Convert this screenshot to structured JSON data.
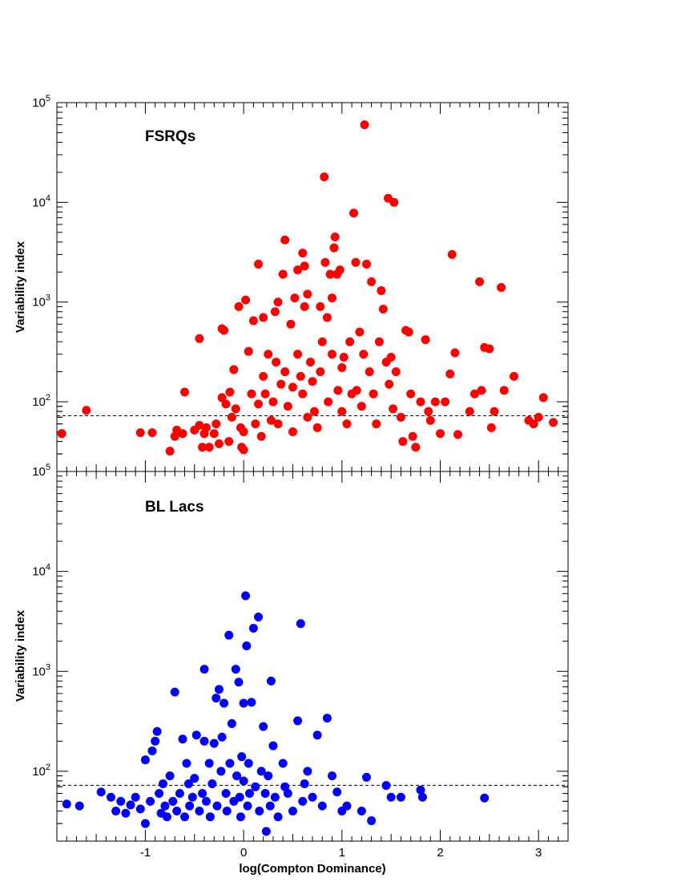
{
  "chart_data": [
    {
      "type": "scatter",
      "panel_label": "FSRQs",
      "xlabel": "",
      "ylabel": "Variability index",
      "xlim": [
        -1.9,
        3.3
      ],
      "ylim": [
        20,
        100000
      ],
      "y_scale": "log",
      "y_tick_labels": [
        {
          "base": "10",
          "exp": "2",
          "value": 100
        },
        {
          "base": "10",
          "exp": "3",
          "value": 1000
        },
        {
          "base": "10",
          "exp": "4",
          "value": 10000
        },
        {
          "base": "10",
          "exp": "5",
          "value": 100000
        }
      ],
      "threshold_line": 72.44,
      "marker_color": "#ff0000",
      "points": [
        [
          -1.85,
          48
        ],
        [
          -1.6,
          82
        ],
        [
          -1.05,
          49
        ],
        [
          -0.93,
          49
        ],
        [
          -0.75,
          32
        ],
        [
          -0.68,
          52
        ],
        [
          -0.7,
          45
        ],
        [
          -0.62,
          48
        ],
        [
          -0.6,
          125
        ],
        [
          -0.5,
          52
        ],
        [
          -0.45,
          430
        ],
        [
          -0.45,
          58
        ],
        [
          -0.42,
          35
        ],
        [
          -0.4,
          48
        ],
        [
          -0.38,
          55
        ],
        [
          -0.35,
          35
        ],
        [
          -0.3,
          48
        ],
        [
          -0.28,
          60
        ],
        [
          -0.25,
          38
        ],
        [
          -0.22,
          110
        ],
        [
          -0.2,
          520
        ],
        [
          -0.22,
          540
        ],
        [
          -0.18,
          95
        ],
        [
          -0.15,
          40
        ],
        [
          -0.14,
          125
        ],
        [
          -0.12,
          70
        ],
        [
          -0.1,
          210
        ],
        [
          -0.08,
          85
        ],
        [
          -0.05,
          900
        ],
        [
          -0.03,
          55
        ],
        [
          -0.02,
          35
        ],
        [
          0,
          50
        ],
        [
          0,
          33
        ],
        [
          0.02,
          1050
        ],
        [
          0.05,
          320
        ],
        [
          0.08,
          120
        ],
        [
          0.1,
          650
        ],
        [
          0.12,
          60
        ],
        [
          0.15,
          2400
        ],
        [
          0.15,
          95
        ],
        [
          0.18,
          45
        ],
        [
          0.2,
          180
        ],
        [
          0.2,
          700
        ],
        [
          0.22,
          120
        ],
        [
          0.25,
          300
        ],
        [
          0.28,
          65
        ],
        [
          0.3,
          100
        ],
        [
          0.32,
          800
        ],
        [
          0.33,
          250
        ],
        [
          0.35,
          1000
        ],
        [
          0.35,
          60
        ],
        [
          0.38,
          150
        ],
        [
          0.4,
          1900
        ],
        [
          0.42,
          4200
        ],
        [
          0.42,
          200
        ],
        [
          0.45,
          90
        ],
        [
          0.48,
          600
        ],
        [
          0.5,
          140
        ],
        [
          0.5,
          50
        ],
        [
          0.52,
          1100
        ],
        [
          0.55,
          2100
        ],
        [
          0.55,
          300
        ],
        [
          0.58,
          180
        ],
        [
          0.6,
          3100
        ],
        [
          0.6,
          120
        ],
        [
          0.62,
          900
        ],
        [
          0.62,
          2300
        ],
        [
          0.65,
          1200
        ],
        [
          0.65,
          70
        ],
        [
          0.68,
          250
        ],
        [
          0.7,
          160
        ],
        [
          0.72,
          80
        ],
        [
          0.75,
          55
        ],
        [
          0.78,
          900
        ],
        [
          0.78,
          200
        ],
        [
          0.8,
          400
        ],
        [
          0.82,
          18000
        ],
        [
          0.83,
          2500
        ],
        [
          0.85,
          700
        ],
        [
          0.86,
          100
        ],
        [
          0.88,
          1900
        ],
        [
          0.9,
          1100
        ],
        [
          0.9,
          300
        ],
        [
          0.92,
          3500
        ],
        [
          0.93,
          4500
        ],
        [
          0.95,
          1900
        ],
        [
          0.96,
          130
        ],
        [
          0.98,
          2100
        ],
        [
          1,
          80
        ],
        [
          1,
          220
        ],
        [
          1.02,
          280
        ],
        [
          1.05,
          60
        ],
        [
          1.08,
          400
        ],
        [
          1.1,
          120
        ],
        [
          1.12,
          7800
        ],
        [
          1.14,
          2500
        ],
        [
          1.15,
          130
        ],
        [
          1.18,
          500
        ],
        [
          1.2,
          90
        ],
        [
          1.22,
          300
        ],
        [
          1.23,
          60000
        ],
        [
          1.25,
          2400
        ],
        [
          1.28,
          200
        ],
        [
          1.3,
          1600
        ],
        [
          1.32,
          120
        ],
        [
          1.35,
          60
        ],
        [
          1.38,
          400
        ],
        [
          1.4,
          1300
        ],
        [
          1.42,
          850
        ],
        [
          1.45,
          250
        ],
        [
          1.47,
          11000
        ],
        [
          1.48,
          150
        ],
        [
          1.5,
          280
        ],
        [
          1.52,
          85
        ],
        [
          1.53,
          10000
        ],
        [
          1.55,
          200
        ],
        [
          1.6,
          70
        ],
        [
          1.62,
          40
        ],
        [
          1.65,
          520
        ],
        [
          1.68,
          500
        ],
        [
          1.7,
          120
        ],
        [
          1.72,
          45
        ],
        [
          1.75,
          35
        ],
        [
          1.8,
          100
        ],
        [
          1.85,
          420
        ],
        [
          1.88,
          80
        ],
        [
          1.9,
          65
        ],
        [
          1.95,
          100
        ],
        [
          2,
          48
        ],
        [
          2.05,
          100
        ],
        [
          2.1,
          190
        ],
        [
          2.12,
          3000
        ],
        [
          2.15,
          310
        ],
        [
          2.18,
          47
        ],
        [
          2.3,
          80
        ],
        [
          2.35,
          120
        ],
        [
          2.4,
          1600
        ],
        [
          2.42,
          130
        ],
        [
          2.45,
          350
        ],
        [
          2.5,
          340
        ],
        [
          2.52,
          55
        ],
        [
          2.55,
          80
        ],
        [
          2.62,
          1400
        ],
        [
          2.65,
          130
        ],
        [
          2.75,
          180
        ],
        [
          2.9,
          65
        ],
        [
          2.95,
          60
        ],
        [
          3,
          70
        ],
        [
          3.05,
          110
        ],
        [
          3.15,
          62
        ]
      ]
    },
    {
      "type": "scatter",
      "panel_label": "BL Lacs",
      "xlabel": "log(Compton Dominance)",
      "ylabel": "Variability index",
      "xlim": [
        -1.9,
        3.3
      ],
      "ylim": [
        20,
        100000
      ],
      "y_scale": "log",
      "x_tick_labels": [
        {
          "label": "-1",
          "value": -1
        },
        {
          "label": "0",
          "value": 0
        },
        {
          "label": "1",
          "value": 1
        },
        {
          "label": "2",
          "value": 2
        },
        {
          "label": "3",
          "value": 3
        }
      ],
      "y_tick_labels": [
        {
          "base": "10",
          "exp": "2",
          "value": 100
        },
        {
          "base": "10",
          "exp": "3",
          "value": 1000
        },
        {
          "base": "10",
          "exp": "4",
          "value": 10000
        },
        {
          "base": "10",
          "exp": "5",
          "value": 100000
        }
      ],
      "threshold_line": 72.44,
      "marker_color": "#0000ff",
      "points": [
        [
          -1.8,
          47
        ],
        [
          -1.67,
          45
        ],
        [
          -1.45,
          62
        ],
        [
          -1.35,
          55
        ],
        [
          -1.3,
          40
        ],
        [
          -1.25,
          50
        ],
        [
          -1.2,
          38
        ],
        [
          -1.15,
          46
        ],
        [
          -1.1,
          55
        ],
        [
          -1.05,
          42
        ],
        [
          -1,
          130
        ],
        [
          -1,
          30
        ],
        [
          -0.95,
          50
        ],
        [
          -0.93,
          160
        ],
        [
          -0.9,
          200
        ],
        [
          -0.88,
          250
        ],
        [
          -0.86,
          60
        ],
        [
          -0.84,
          38
        ],
        [
          -0.82,
          75
        ],
        [
          -0.8,
          45
        ],
        [
          -0.78,
          35
        ],
        [
          -0.75,
          90
        ],
        [
          -0.72,
          50
        ],
        [
          -0.7,
          620
        ],
        [
          -0.68,
          40
        ],
        [
          -0.65,
          60
        ],
        [
          -0.62,
          210
        ],
        [
          -0.6,
          35
        ],
        [
          -0.58,
          120
        ],
        [
          -0.56,
          75
        ],
        [
          -0.55,
          45
        ],
        [
          -0.52,
          55
        ],
        [
          -0.5,
          85
        ],
        [
          -0.48,
          230
        ],
        [
          -0.45,
          40
        ],
        [
          -0.42,
          60
        ],
        [
          -0.4,
          1050
        ],
        [
          -0.4,
          200
        ],
        [
          -0.38,
          50
        ],
        [
          -0.35,
          120
        ],
        [
          -0.34,
          35
        ],
        [
          -0.32,
          75
        ],
        [
          -0.3,
          190
        ],
        [
          -0.28,
          540
        ],
        [
          -0.27,
          45
        ],
        [
          -0.25,
          660
        ],
        [
          -0.23,
          100
        ],
        [
          -0.22,
          220
        ],
        [
          -0.2,
          480
        ],
        [
          -0.18,
          60
        ],
        [
          -0.17,
          40
        ],
        [
          -0.15,
          2300
        ],
        [
          -0.14,
          120
        ],
        [
          -0.12,
          300
        ],
        [
          -0.1,
          50
        ],
        [
          -0.08,
          1050
        ],
        [
          -0.07,
          90
        ],
        [
          -0.05,
          780
        ],
        [
          -0.04,
          55
        ],
        [
          -0.03,
          35
        ],
        [
          -0.02,
          140
        ],
        [
          0,
          480
        ],
        [
          0,
          80
        ],
        [
          0.02,
          5700
        ],
        [
          0.03,
          1800
        ],
        [
          0.04,
          45
        ],
        [
          0.05,
          120
        ],
        [
          0.06,
          60
        ],
        [
          0.08,
          490
        ],
        [
          0.1,
          2700
        ],
        [
          0.12,
          70
        ],
        [
          0.15,
          3500
        ],
        [
          0.16,
          40
        ],
        [
          0.18,
          100
        ],
        [
          0.2,
          280
        ],
        [
          0.22,
          60
        ],
        [
          0.23,
          25
        ],
        [
          0.25,
          90
        ],
        [
          0.27,
          45
        ],
        [
          0.28,
          800
        ],
        [
          0.3,
          180
        ],
        [
          0.32,
          55
        ],
        [
          0.35,
          35
        ],
        [
          0.4,
          120
        ],
        [
          0.42,
          70
        ],
        [
          0.45,
          60
        ],
        [
          0.5,
          40
        ],
        [
          0.55,
          320
        ],
        [
          0.58,
          3000
        ],
        [
          0.6,
          50
        ],
        [
          0.62,
          75
        ],
        [
          0.65,
          100
        ],
        [
          0.7,
          55
        ],
        [
          0.75,
          230
        ],
        [
          0.8,
          45
        ],
        [
          0.85,
          340
        ],
        [
          0.9,
          90
        ],
        [
          0.95,
          62
        ],
        [
          1,
          40
        ],
        [
          1.05,
          45
        ],
        [
          1.2,
          40
        ],
        [
          1.25,
          87
        ],
        [
          1.3,
          32
        ],
        [
          1.45,
          72
        ],
        [
          1.5,
          55
        ],
        [
          1.6,
          55
        ],
        [
          1.8,
          65
        ],
        [
          1.82,
          55
        ],
        [
          2.45,
          54
        ]
      ]
    }
  ]
}
